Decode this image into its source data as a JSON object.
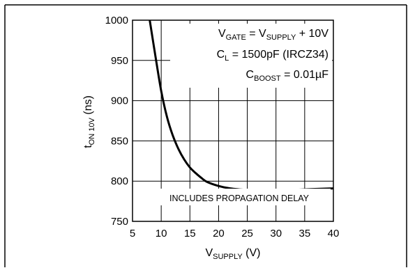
{
  "chart_data": {
    "type": "line",
    "title": "",
    "ylabel": {
      "main": "t",
      "sub": "ON 10V",
      "suffix": " (ns)"
    },
    "xlabel": {
      "main": "V",
      "sub": "SUPPLY",
      "suffix": " (V)"
    },
    "xlim": [
      5,
      40
    ],
    "ylim": [
      750,
      1000
    ],
    "x_ticks": [
      5,
      10,
      15,
      20,
      25,
      30,
      35,
      40
    ],
    "y_ticks": [
      750,
      800,
      850,
      900,
      950,
      1000
    ],
    "x_tick_labels": [
      "5",
      "10",
      "15",
      "20",
      "25",
      "30",
      "35",
      "40"
    ],
    "y_tick_labels": [
      "750",
      "800",
      "850",
      "900",
      "950",
      "1000"
    ],
    "grid": true,
    "annotations": {
      "vgate": {
        "a": "V",
        "a_sub": "GATE",
        "b": " = V",
        "b_sub": "SUPPLY",
        "c": " + 10V"
      },
      "cl": {
        "a": "C",
        "a_sub": "L",
        "b": " = 1500pF (IRCZ34)"
      },
      "cboost": {
        "a": "C",
        "a_sub": "BOOST",
        "b": " = 0.01µF"
      },
      "note": "INCLUDES PROPAGATION DELAY"
    },
    "series": [
      {
        "color": "#000000",
        "x": [
          8,
          9,
          10,
          11,
          12,
          13,
          14,
          15,
          16,
          17,
          18,
          20,
          22,
          25,
          28,
          30,
          33,
          36,
          40
        ],
        "y": [
          1000,
          955,
          912,
          880,
          857,
          840,
          827,
          817,
          810,
          804,
          799,
          794,
          791,
          789,
          788,
          788,
          789,
          790,
          791
        ]
      }
    ]
  }
}
